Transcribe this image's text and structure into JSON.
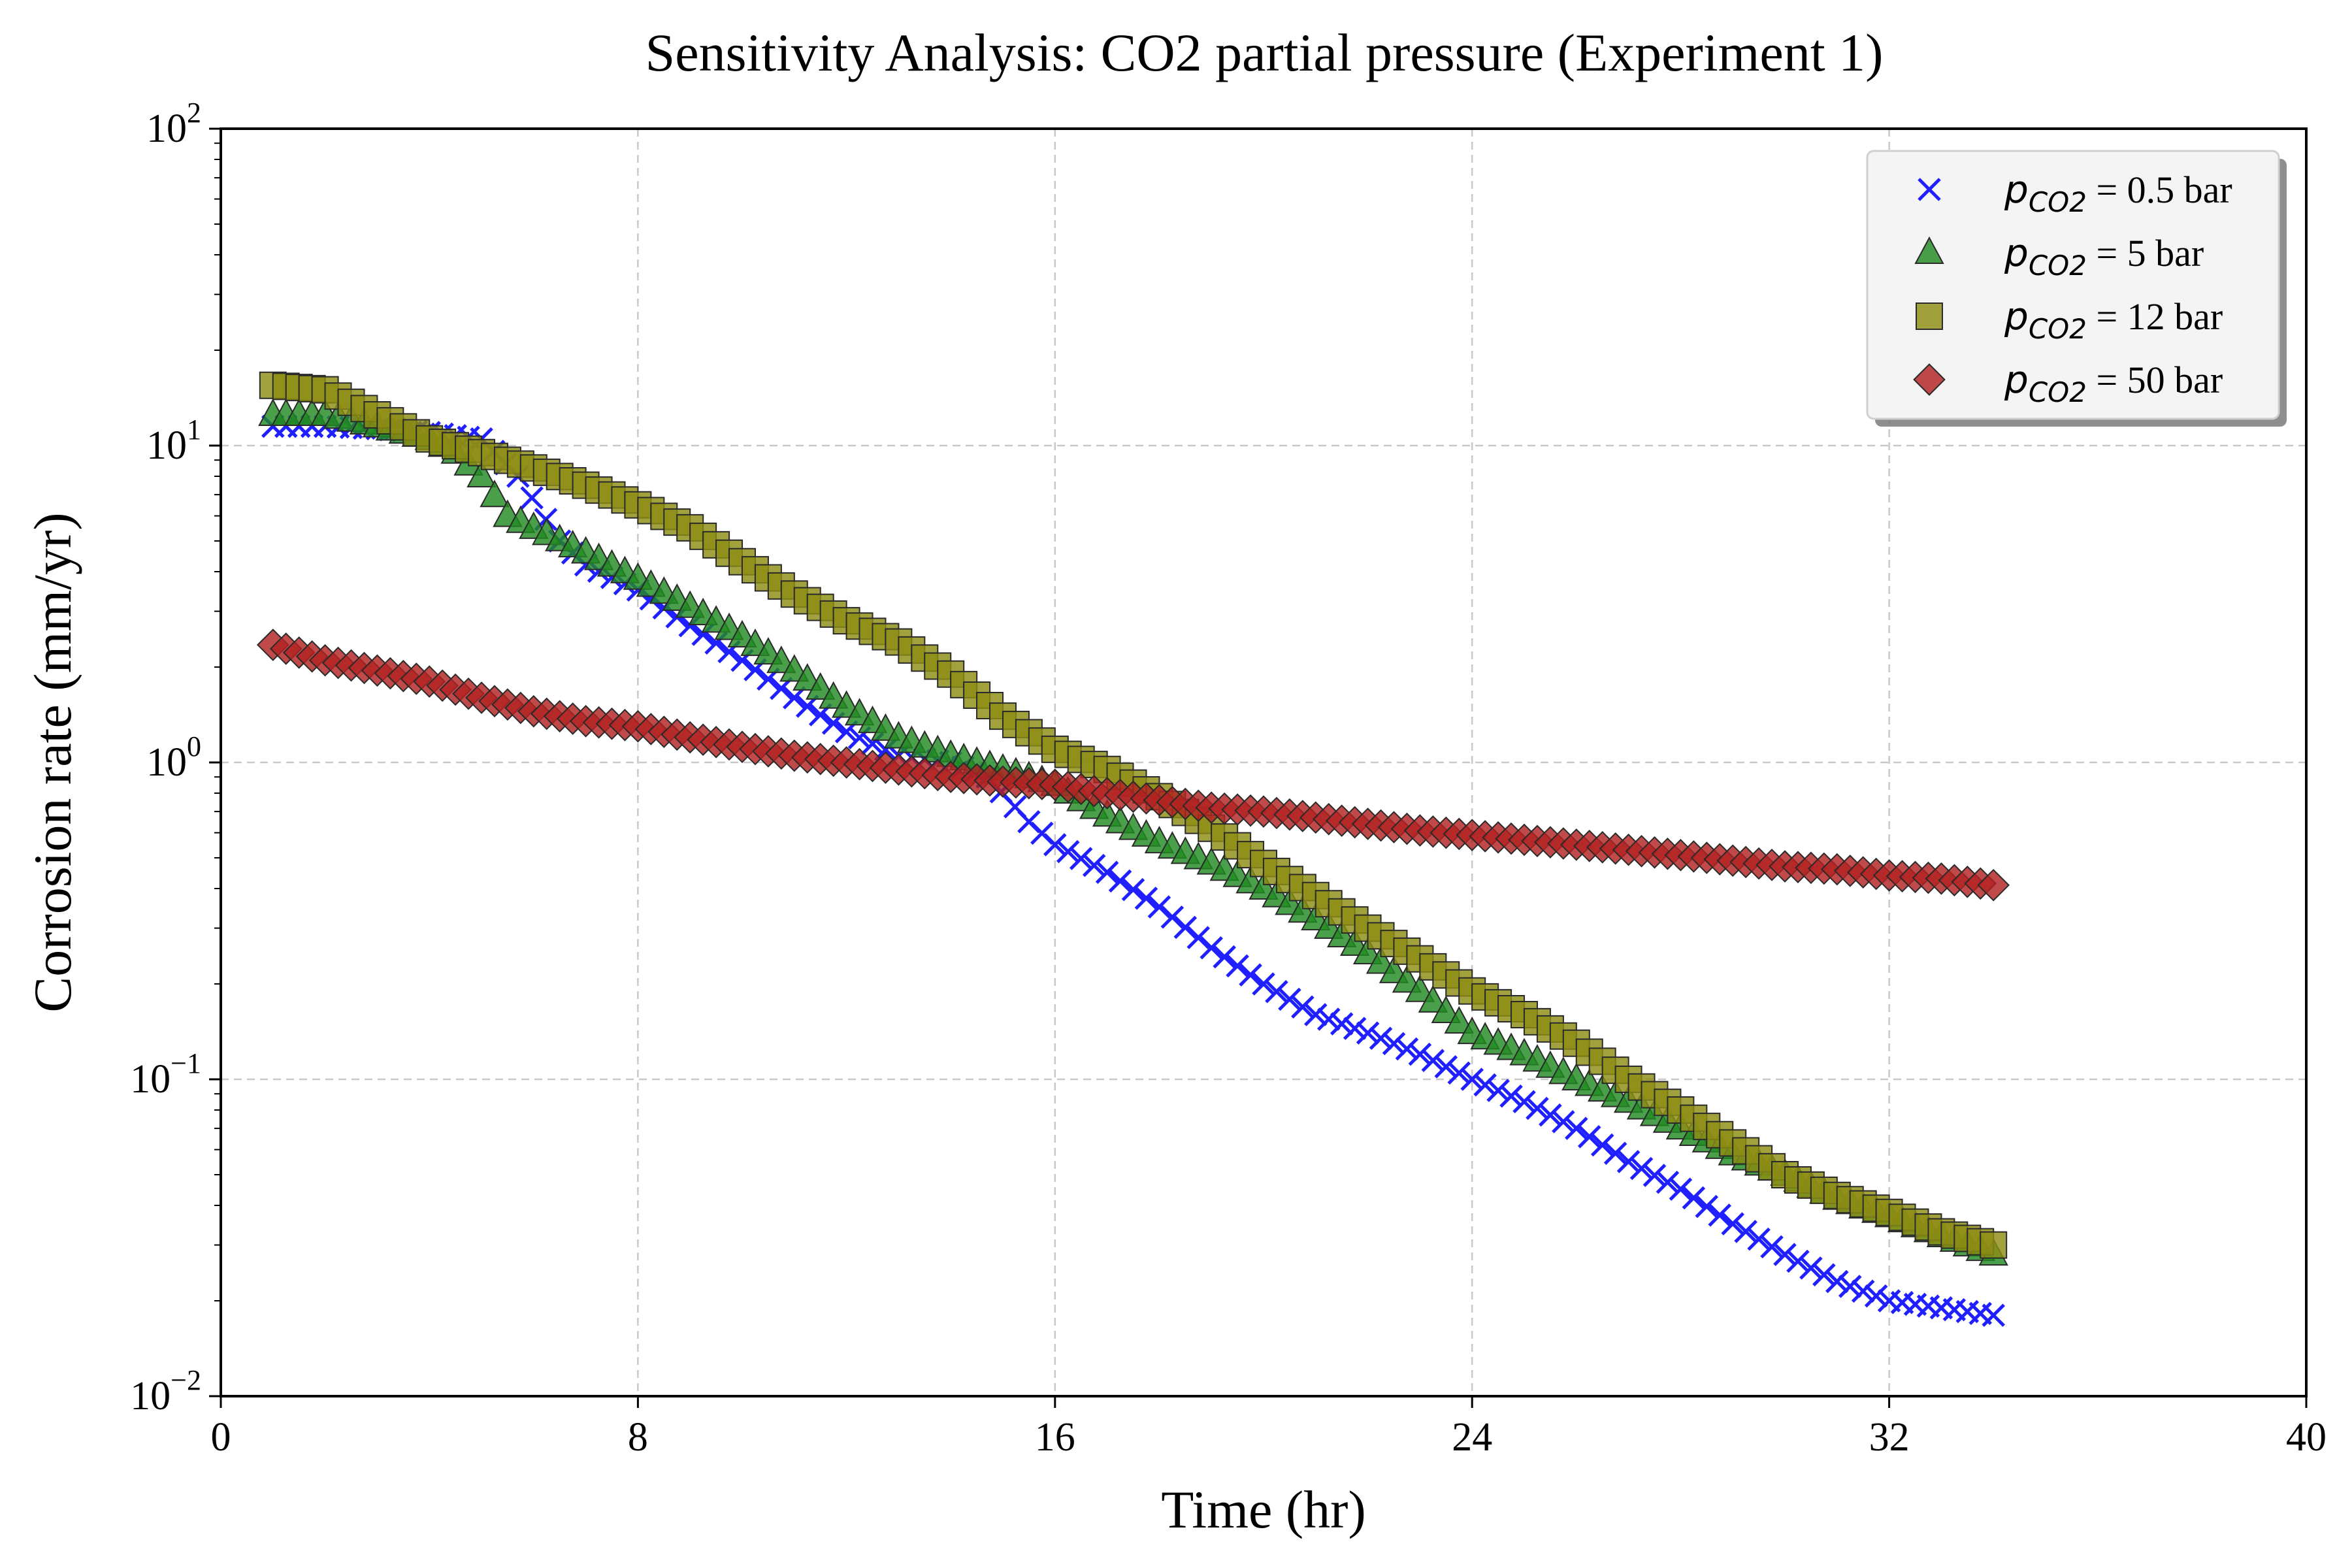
{
  "chart_data": {
    "type": "scatter",
    "title": "Sensitivity Analysis: CO2 partial pressure (Experiment 1)",
    "xlabel": "Time (hr)",
    "ylabel": "Corrosion rate (mm/yr)",
    "xlim": [
      0,
      40
    ],
    "ylim": [
      0.01,
      100
    ],
    "yscale": "log",
    "grid": true,
    "legend_position": "top-right",
    "x_ticks": [
      {
        "value": 0,
        "label": "0"
      },
      {
        "value": 8,
        "label": "8"
      },
      {
        "value": 16,
        "label": "16"
      },
      {
        "value": 24,
        "label": "24"
      },
      {
        "value": 32,
        "label": "32"
      },
      {
        "value": 40,
        "label": "40"
      }
    ],
    "y_ticks": [
      {
        "value": 0.01,
        "base": "10",
        "exp": "−2"
      },
      {
        "value": 0.1,
        "base": "10",
        "exp": "−1"
      },
      {
        "value": 1,
        "base": "10",
        "exp": "0"
      },
      {
        "value": 10,
        "base": "10",
        "exp": "1"
      },
      {
        "value": 100,
        "base": "10",
        "exp": "2"
      }
    ],
    "series": [
      {
        "legend_symbol": "p",
        "legend_subscript": "CO2",
        "legend_suffix": " = 0.5 bar",
        "marker": "x",
        "color": "#1f1fff",
        "points": [
          [
            1,
            11.5
          ],
          [
            2,
            11.5
          ],
          [
            3,
            11.3
          ],
          [
            4,
            11.0
          ],
          [
            5,
            10.5
          ],
          [
            5.7,
            8.0
          ],
          [
            6.5,
            5.0
          ],
          [
            7,
            4.2
          ],
          [
            8,
            3.5
          ],
          [
            9,
            2.7
          ],
          [
            10,
            2.1
          ],
          [
            11,
            1.6
          ],
          [
            12,
            1.25
          ],
          [
            13,
            1.05
          ],
          [
            14,
            1.0
          ],
          [
            14.7,
            0.9
          ],
          [
            15.5,
            0.65
          ],
          [
            16,
            0.55
          ],
          [
            17,
            0.45
          ],
          [
            18,
            0.35
          ],
          [
            19,
            0.26
          ],
          [
            20,
            0.2
          ],
          [
            21,
            0.16
          ],
          [
            22,
            0.14
          ],
          [
            23,
            0.12
          ],
          [
            24,
            0.1
          ],
          [
            25,
            0.085
          ],
          [
            26,
            0.07
          ],
          [
            27,
            0.055
          ],
          [
            28,
            0.045
          ],
          [
            29,
            0.035
          ],
          [
            30,
            0.028
          ],
          [
            31,
            0.023
          ],
          [
            32,
            0.02
          ],
          [
            33,
            0.019
          ],
          [
            34,
            0.018
          ]
        ]
      },
      {
        "legend_symbol": "p",
        "legend_subscript": "CO2",
        "legend_suffix": " = 5 bar",
        "marker": "triangle",
        "color": "#228b22",
        "points": [
          [
            1,
            12.5
          ],
          [
            2,
            12.5
          ],
          [
            3,
            11.5
          ],
          [
            4,
            10.5
          ],
          [
            4.5,
            9.5
          ],
          [
            5,
            8.0
          ],
          [
            5.5,
            6.0
          ],
          [
            6,
            5.5
          ],
          [
            7,
            4.6
          ],
          [
            8,
            3.8
          ],
          [
            9,
            3.1
          ],
          [
            10,
            2.5
          ],
          [
            11,
            1.95
          ],
          [
            12,
            1.5
          ],
          [
            13,
            1.2
          ],
          [
            14,
            1.05
          ],
          [
            15,
            0.95
          ],
          [
            16,
            0.85
          ],
          [
            17,
            0.68
          ],
          [
            18,
            0.56
          ],
          [
            19,
            0.48
          ],
          [
            20,
            0.4
          ],
          [
            21,
            0.32
          ],
          [
            22,
            0.25
          ],
          [
            23,
            0.19
          ],
          [
            24,
            0.14
          ],
          [
            25,
            0.12
          ],
          [
            26,
            0.1
          ],
          [
            27,
            0.085
          ],
          [
            28,
            0.07
          ],
          [
            29,
            0.058
          ],
          [
            30,
            0.05
          ],
          [
            31,
            0.042
          ],
          [
            32,
            0.037
          ],
          [
            33,
            0.032
          ],
          [
            34,
            0.028
          ]
        ]
      },
      {
        "legend_symbol": "p",
        "legend_subscript": "CO2",
        "legend_suffix": " = 12 bar",
        "marker": "square",
        "color": "#8c8c14",
        "points": [
          [
            1,
            15.5
          ],
          [
            2,
            15.0
          ],
          [
            3,
            12.5
          ],
          [
            4,
            10.5
          ],
          [
            5,
            9.5
          ],
          [
            6,
            8.5
          ],
          [
            7,
            7.5
          ],
          [
            8,
            6.5
          ],
          [
            9,
            5.5
          ],
          [
            10,
            4.3
          ],
          [
            11,
            3.4
          ],
          [
            12,
            2.8
          ],
          [
            13,
            2.4
          ],
          [
            14,
            1.9
          ],
          [
            15,
            1.4
          ],
          [
            16,
            1.1
          ],
          [
            17,
            0.95
          ],
          [
            18,
            0.78
          ],
          [
            19,
            0.62
          ],
          [
            20,
            0.48
          ],
          [
            21,
            0.38
          ],
          [
            22,
            0.3
          ],
          [
            23,
            0.24
          ],
          [
            24,
            0.19
          ],
          [
            25,
            0.16
          ],
          [
            26,
            0.13
          ],
          [
            27,
            0.1
          ],
          [
            28,
            0.08
          ],
          [
            29,
            0.063
          ],
          [
            30,
            0.05
          ],
          [
            31,
            0.043
          ],
          [
            32,
            0.038
          ],
          [
            33,
            0.033
          ],
          [
            34,
            0.03
          ]
        ]
      },
      {
        "legend_symbol": "p",
        "legend_subscript": "CO2",
        "legend_suffix": " = 50 bar",
        "marker": "diamond",
        "color": "#b22222",
        "points": [
          [
            1,
            2.35
          ],
          [
            2,
            2.1
          ],
          [
            3,
            1.95
          ],
          [
            4,
            1.8
          ],
          [
            5,
            1.6
          ],
          [
            6,
            1.45
          ],
          [
            7,
            1.35
          ],
          [
            8,
            1.3
          ],
          [
            9,
            1.2
          ],
          [
            10,
            1.12
          ],
          [
            11,
            1.05
          ],
          [
            12,
            1.0
          ],
          [
            13,
            0.95
          ],
          [
            14,
            0.9
          ],
          [
            15,
            0.87
          ],
          [
            16,
            0.85
          ],
          [
            17,
            0.8
          ],
          [
            18,
            0.76
          ],
          [
            19,
            0.72
          ],
          [
            20,
            0.7
          ],
          [
            21,
            0.67
          ],
          [
            22,
            0.64
          ],
          [
            23,
            0.61
          ],
          [
            24,
            0.59
          ],
          [
            25,
            0.57
          ],
          [
            26,
            0.55
          ],
          [
            27,
            0.53
          ],
          [
            28,
            0.51
          ],
          [
            29,
            0.49
          ],
          [
            30,
            0.47
          ],
          [
            31,
            0.46
          ],
          [
            32,
            0.44
          ],
          [
            33,
            0.43
          ],
          [
            34,
            0.41
          ]
        ]
      }
    ]
  }
}
